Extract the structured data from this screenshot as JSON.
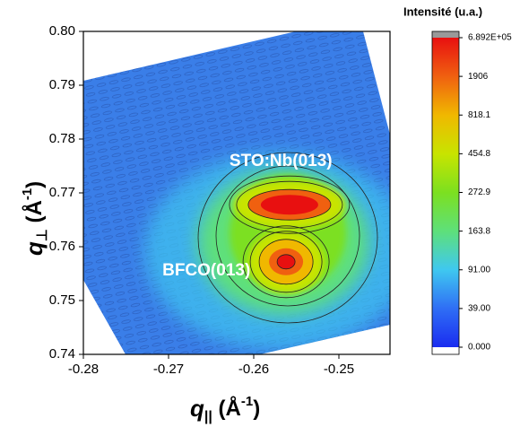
{
  "chart_data": {
    "type": "contour",
    "x_label_parts": [
      "q",
      "||",
      " (Å",
      "-1",
      ")"
    ],
    "y_label_parts": [
      "q",
      "⊥",
      " (Å",
      "-1",
      ")"
    ],
    "xlim": [
      -0.28,
      -0.244
    ],
    "xticks": [
      {
        "value": -0.28,
        "label": "-0.28"
      },
      {
        "value": -0.27,
        "label": "-0.27"
      },
      {
        "value": -0.26,
        "label": "-0.26"
      },
      {
        "value": -0.25,
        "label": "-0.25"
      }
    ],
    "ylim": [
      0.74,
      0.8
    ],
    "yticks": [
      0.74,
      0.75,
      0.76,
      0.77,
      0.78,
      0.79,
      {
        "value": 0.8,
        "label": "0.80"
      }
    ],
    "annotations": [
      "STO:Nb(013)",
      "BFCO(013)"
    ],
    "peaks": [
      {
        "x": -0.2558,
        "y": 0.7678
      },
      {
        "x": -0.2562,
        "y": 0.7572
      }
    ],
    "colorbar": {
      "title": "Intensité (u.a.)",
      "ticks": [
        {
          "value": 0,
          "label": "0.000"
        },
        {
          "value": 39,
          "label": "39.00"
        },
        {
          "value": 91,
          "label": "91.00"
        },
        163.8,
        272.9,
        454.8,
        818.1,
        1906,
        {
          "value": 689200,
          "label": "6.892E+05"
        }
      ],
      "colors": [
        "#1a2cf0",
        "#2f6ef5",
        "#3fc8f0",
        "#5ee07a",
        "#7ce020",
        "#c8e400",
        "#f0b800",
        "#f06010",
        "#e81010"
      ]
    }
  }
}
